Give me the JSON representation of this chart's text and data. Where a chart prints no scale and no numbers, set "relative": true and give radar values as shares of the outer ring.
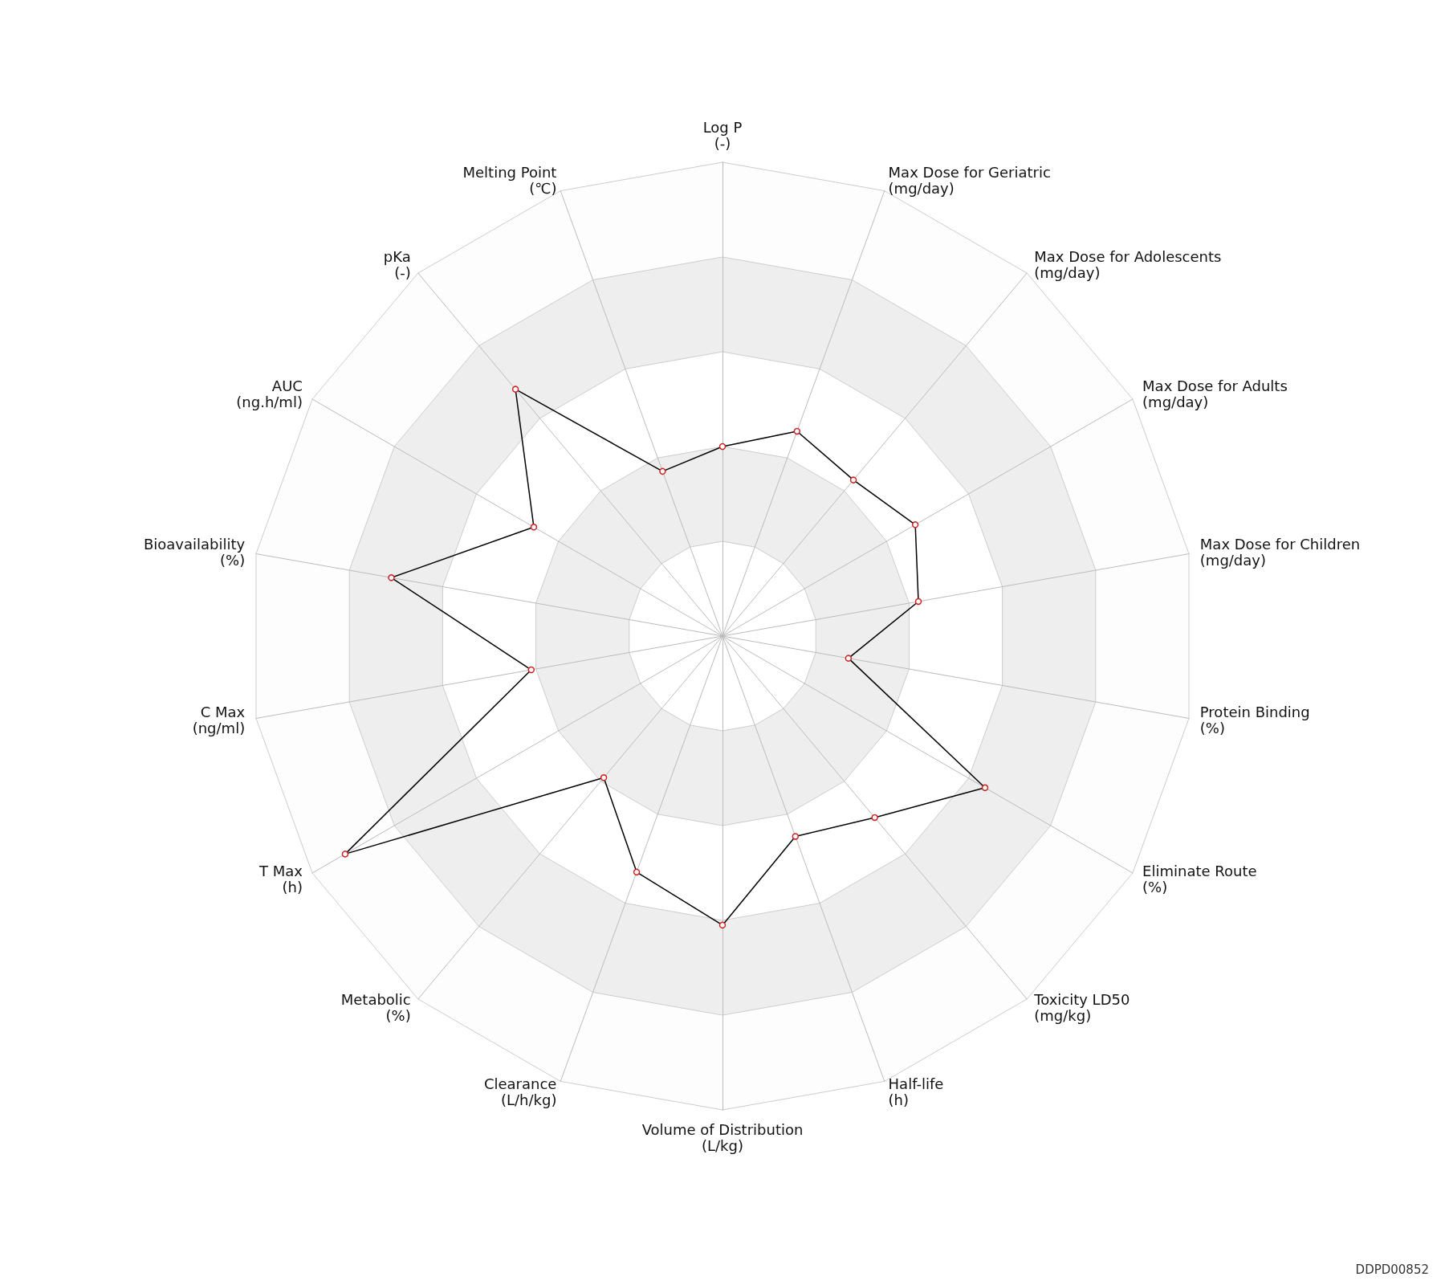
{
  "chart_data": {
    "type": "radar",
    "relative": true,
    "marker": "circle",
    "categories": [
      "Log P\n(-)",
      "Max Dose for Geriatric\n(mg/day)",
      "Max Dose for Adolescents\n(mg/day)",
      "Max Dose for Adults\n(mg/day)",
      "Max Dose for Children\n(mg/day)",
      "Protein Binding\n(%)",
      "Eliminate Route\n(%)",
      "Toxicity LD50\n(mg/kg)",
      "Half-life\n(h)",
      "Volume of Distribution\n(L/kg)",
      "Clearance\n(L/h/kg)",
      "Metabolic\n(%)",
      "T Max\n(h)",
      "C Max\n(ng/ml)",
      "Bioavailability\n(%)",
      "AUC\n(ng.h/ml)",
      "pKa\n(-)",
      "Melting Point\n(℃)"
    ],
    "series": [
      {
        "color": "#000000",
        "values": [
          0.4,
          0.46,
          0.43,
          0.47,
          0.42,
          0.27,
          0.64,
          0.5,
          0.45,
          0.61,
          0.53,
          0.39,
          0.92,
          0.41,
          0.71,
          0.46,
          0.68,
          0.37
        ]
      }
    ],
    "annotations": [
      "DDPD00852"
    ]
  }
}
